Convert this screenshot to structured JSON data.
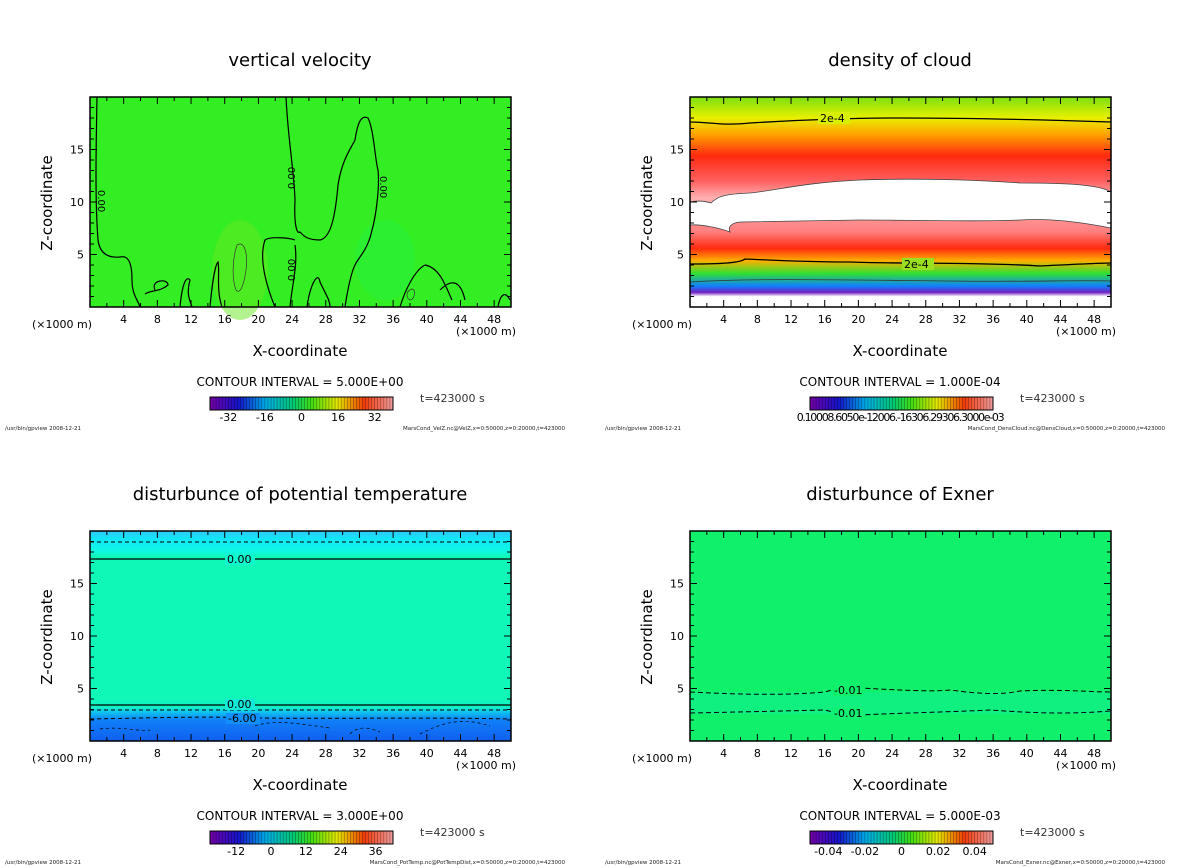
{
  "chart_data": [
    {
      "type": "heatmap",
      "id": "velz",
      "title": "vertical velocity",
      "xlabel": "X-coordinate",
      "ylabel": "Z-coordinate",
      "x_unit_left": "(×1000 m)",
      "x_unit_right": "(×1000 m)",
      "xlim": [
        0,
        50
      ],
      "ylim": [
        0,
        20
      ],
      "xticks": [
        "4",
        "8",
        "12",
        "16",
        "20",
        "24",
        "28",
        "32",
        "36",
        "40",
        "44",
        "48"
      ],
      "yticks": [
        "5",
        "10",
        "15"
      ],
      "contour_interval": "CONTOUR INTERVAL = 5.000E+00",
      "time": "t=423000 s",
      "colorbar_ticks": [
        "-32",
        "-16",
        "0",
        "16",
        "32"
      ],
      "colorbar_range": [
        -40,
        40
      ],
      "contour_labels": [
        "0.00",
        "0.00",
        "0.00",
        "0.00"
      ],
      "footer_left": "/usr/bin/gpview  2008-12-21",
      "footer_right": "MarsCond_VelZ.nc@VelZ,x=0:50000,z=0:20000,t=423000",
      "background_color": "#33ee22"
    },
    {
      "type": "heatmap",
      "id": "cloud",
      "title": "density of cloud",
      "xlabel": "X-coordinate",
      "ylabel": "Z-coordinate",
      "x_unit_left": "(×1000 m)",
      "x_unit_right": "(×1000 m)",
      "xlim": [
        0,
        50
      ],
      "ylim": [
        0,
        20
      ],
      "xticks": [
        "4",
        "8",
        "12",
        "16",
        "20",
        "24",
        "28",
        "32",
        "36",
        "40",
        "44",
        "48"
      ],
      "yticks": [
        "5",
        "10",
        "15"
      ],
      "contour_interval": "CONTOUR INTERVAL = 1.000E-04",
      "time": "t=423000 s",
      "colorbar_ticks_overlapping": "0.10008.6050e-12006.-16306.29306.3000e-03",
      "contour_labels": [
        "2e-4",
        "2e-4"
      ],
      "footer_left": "/usr/bin/gpview  2008-12-21",
      "footer_right": "MarsCond_DensCloud.nc@DensCloud,x=0:50000,z=0:20000,t=423000"
    },
    {
      "type": "heatmap",
      "id": "pottemp",
      "title": "disturbunce of potential temperature",
      "xlabel": "X-coordinate",
      "ylabel": "Z-coordinate",
      "x_unit_left": "(×1000 m)",
      "x_unit_right": "(×1000 m)",
      "xlim": [
        0,
        50
      ],
      "ylim": [
        0,
        20
      ],
      "xticks": [
        "4",
        "8",
        "12",
        "16",
        "20",
        "24",
        "28",
        "32",
        "36",
        "40",
        "44",
        "48"
      ],
      "yticks": [
        "5",
        "10",
        "15"
      ],
      "contour_interval": "CONTOUR INTERVAL = 3.000E+00",
      "time": "t=423000 s",
      "colorbar_ticks": [
        "-12",
        "0",
        "12",
        "24",
        "36"
      ],
      "colorbar_range": [
        -21,
        42
      ],
      "contour_labels": [
        "0.00",
        "0.00",
        "-6.00"
      ],
      "footer_left": "/usr/bin/gpview  2008-12-21",
      "footer_right": "MarsCond_PotTemp.nc@PotTempDist,x=0:50000,z=0:20000,t=423000"
    },
    {
      "type": "heatmap",
      "id": "exner",
      "title": "disturbunce of Exner",
      "xlabel": "X-coordinate",
      "ylabel": "Z-coordinate",
      "x_unit_left": "(×1000 m)",
      "x_unit_right": "(×1000 m)",
      "xlim": [
        0,
        50
      ],
      "ylim": [
        0,
        20
      ],
      "xticks": [
        "4",
        "8",
        "12",
        "16",
        "20",
        "24",
        "28",
        "32",
        "36",
        "40",
        "44",
        "48"
      ],
      "yticks": [
        "5",
        "10",
        "15"
      ],
      "contour_interval": "CONTOUR INTERVAL = 5.000E-03",
      "time": "t=423000 s",
      "colorbar_ticks": [
        "-0.04",
        "-0.02",
        "0",
        "0.02",
        "0.04"
      ],
      "colorbar_range": [
        -0.05,
        0.05
      ],
      "contour_labels": [
        "-0.01",
        "-0.01"
      ],
      "footer_left": "/usr/bin/gpview  2008-12-21",
      "footer_right": "MarsCond_Exner.nc@Exner,x=0:50000,z=0:20000,t=423000",
      "background_color": "#11f06a"
    }
  ]
}
